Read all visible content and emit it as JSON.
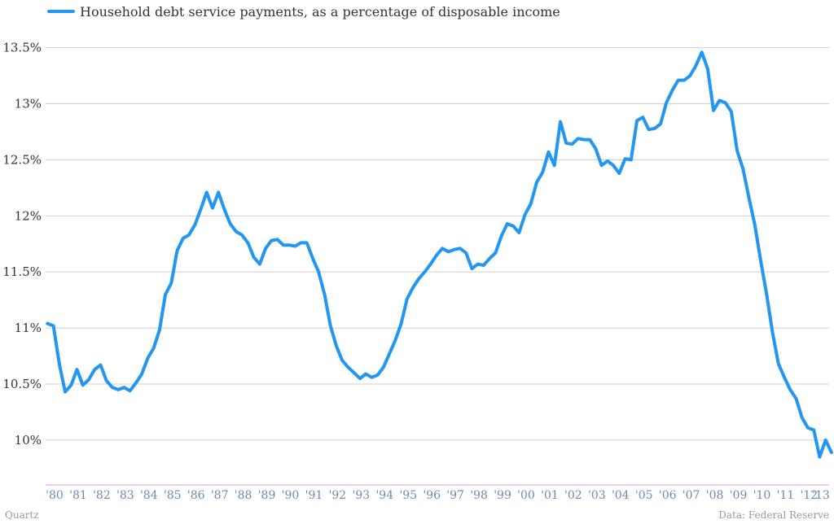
{
  "chart_data": {
    "type": "line",
    "legend_position": "top-left",
    "grid": true,
    "ylim": [
      9.6,
      13.65
    ],
    "y_ticks": [
      10,
      10.5,
      11,
      11.5,
      12,
      12.5,
      13,
      13.5
    ],
    "y_tick_labels": [
      "10%",
      "10.5%",
      "11%",
      "11.5%",
      "12%",
      "12.5%",
      "13%",
      "13.5%"
    ],
    "x_tick_labels": [
      "'80",
      "'81",
      "'82",
      "'83",
      "'84",
      "'85",
      "'86",
      "'87",
      "'88",
      "'89",
      "'90",
      "'91",
      "'92",
      "'93",
      "'94",
      "'95",
      "'96",
      "'97",
      "'98",
      "'99",
      "'00",
      "'01",
      "'02",
      "'03",
      "'04",
      "'05",
      "'06",
      "'07",
      "'08",
      "'09",
      "'10",
      "'11",
      "'12",
      "'13"
    ],
    "colors": {
      "line": "#2196f3",
      "grid": "#d0d0d0",
      "baseline": "#e39ad6",
      "xtick": "#6b8ab8"
    },
    "series": [
      {
        "name": "Household debt service payments, as a percentage of disposable income",
        "x_start": 1980,
        "x_step": 0.25,
        "values": [
          11.04,
          11.02,
          10.68,
          10.43,
          10.49,
          10.63,
          10.49,
          10.54,
          10.63,
          10.67,
          10.53,
          10.47,
          10.45,
          10.47,
          10.44,
          10.51,
          10.59,
          10.73,
          10.82,
          10.98,
          11.3,
          11.4,
          11.69,
          11.8,
          11.83,
          11.92,
          12.06,
          12.21,
          12.07,
          12.21,
          12.06,
          11.93,
          11.86,
          11.83,
          11.76,
          11.63,
          11.57,
          11.71,
          11.78,
          11.79,
          11.74,
          11.74,
          11.73,
          11.76,
          11.76,
          11.62,
          11.5,
          11.3,
          11.02,
          10.84,
          10.71,
          10.65,
          10.6,
          10.55,
          10.59,
          10.56,
          10.58,
          10.65,
          10.77,
          10.89,
          11.04,
          11.26,
          11.36,
          11.44,
          11.5,
          11.57,
          11.65,
          11.71,
          11.68,
          11.7,
          11.71,
          11.67,
          11.53,
          11.57,
          11.56,
          11.62,
          11.67,
          11.82,
          11.93,
          11.91,
          11.85,
          12.01,
          12.11,
          12.3,
          12.39,
          12.57,
          12.45,
          12.84,
          12.65,
          12.64,
          12.69,
          12.68,
          12.68,
          12.6,
          12.45,
          12.49,
          12.45,
          12.38,
          12.51,
          12.5,
          12.85,
          12.88,
          12.77,
          12.78,
          12.82,
          13.01,
          13.12,
          13.21,
          13.21,
          13.25,
          13.34,
          13.46,
          13.31,
          12.94,
          13.03,
          13.01,
          12.93,
          12.58,
          12.42,
          12.16,
          11.92,
          11.6,
          11.3,
          10.96,
          10.68,
          10.56,
          10.45,
          10.37,
          10.2,
          10.11,
          10.09,
          9.85,
          10.0,
          9.89
        ]
      }
    ]
  },
  "footer": {
    "left": "Quartz",
    "right": "Data:  Federal Reserve"
  }
}
